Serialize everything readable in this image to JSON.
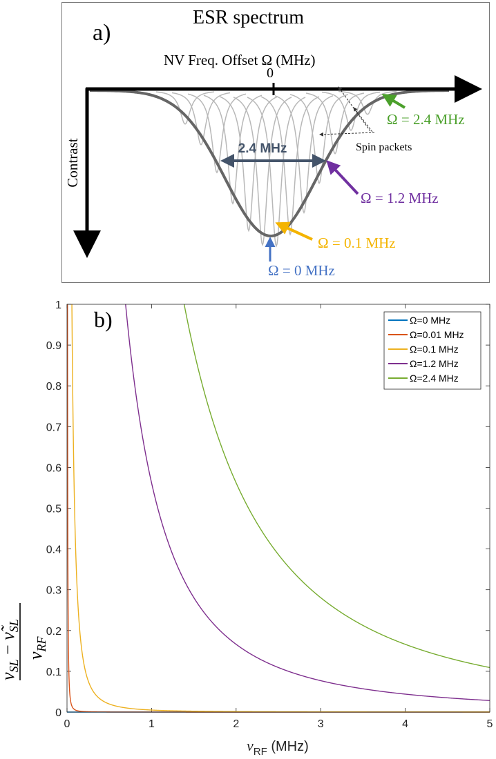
{
  "colors": {
    "blue": "#0072BD",
    "orange": "#D95319",
    "yellow": "#EDB120",
    "purple": "#7E2F8E",
    "green": "#77AC30",
    "anno_blue": "#4472C4",
    "anno_yellow": "#F4B400",
    "anno_purple": "#7030A0",
    "anno_green": "#4BA02B",
    "width_arrow": "#44546A",
    "envelope": "#666666",
    "packet": "#B5B5B5"
  },
  "panel_a": {
    "label": "a)",
    "title": "ESR spectrum",
    "x_axis_label": "NV Freq. Offset Ω (MHz)",
    "zero_label": "0",
    "y_axis_label": "Contrast",
    "width_label": "2.4 MHz",
    "spin_packets_label": "Spin packets",
    "annotations": {
      "omega_0": "Ω = 0 MHz",
      "omega_01": "Ω = 0.1 MHz",
      "omega_12": "Ω = 1.2 MHz",
      "omega_24": "Ω = 2.4 MHz"
    }
  },
  "panel_b": {
    "label": "b)"
  },
  "chart_data": {
    "type": "line",
    "title": "",
    "xlabel": "ν_RF (MHz)",
    "ylabel": "(ν_SL − ν̃_SL) / ν_RF",
    "xlim": [
      0,
      5
    ],
    "ylim": [
      0,
      1
    ],
    "xticks": [
      0,
      1,
      2,
      3,
      4,
      5
    ],
    "yticks": [
      0,
      0.1,
      0.2,
      0.3,
      0.4,
      0.5,
      0.6,
      0.7,
      0.8,
      0.9,
      1
    ],
    "legend_position": "top-right",
    "model": "y = (sqrt(x^2 + Ω^2) − x) / x",
    "series": [
      {
        "name": "Ω=0 MHz",
        "omega": 0,
        "color": "#0072BD"
      },
      {
        "name": "Ω=0.01 MHz",
        "omega": 0.01,
        "color": "#D95319"
      },
      {
        "name": "Ω=0.1 MHz",
        "omega": 0.1,
        "color": "#EDB120"
      },
      {
        "name": "Ω=1.2 MHz",
        "omega": 1.2,
        "color": "#7E2F8E"
      },
      {
        "name": "Ω=2.4 MHz",
        "omega": 2.4,
        "color": "#77AC30"
      }
    ]
  }
}
